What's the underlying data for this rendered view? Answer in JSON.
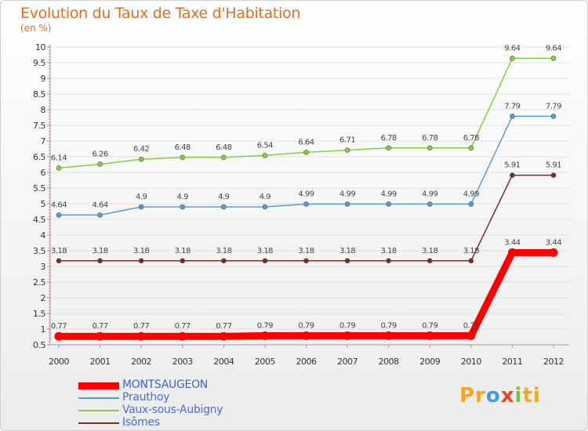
{
  "chart_data": {
    "type": "line",
    "title": "Evolution du Taux de Taxe d'Habitation",
    "subtitle": "(en %)",
    "x": [
      "2000",
      "2001",
      "2002",
      "2003",
      "2004",
      "2005",
      "2006",
      "2007",
      "2008",
      "2009",
      "2010",
      "2011",
      "2012"
    ],
    "ylim": [
      0.5,
      10
    ],
    "yticks": [
      "0.5",
      "1",
      "1.5",
      "2",
      "2.5",
      "3",
      "3.5",
      "4",
      "4.5",
      "5",
      "5.5",
      "6",
      "6.5",
      "7",
      "7.5",
      "8",
      "8.5",
      "9",
      "9.5",
      "10"
    ],
    "grid": "horizontal",
    "legend_position": "bottom-left",
    "series": [
      {
        "name": "MONTSAUGEON",
        "color": "#ff0000",
        "values": [
          0.77,
          0.77,
          0.77,
          0.77,
          0.77,
          0.79,
          0.79,
          0.79,
          0.79,
          0.79,
          0.79,
          3.44,
          3.44
        ],
        "labels": [
          "0.77",
          "0.77",
          "0.77",
          "0.77",
          "0.77",
          "0.79",
          "0.79",
          "0.79",
          "0.79",
          "0.79",
          "0.79",
          "3.44",
          "3.44"
        ]
      },
      {
        "name": "Prauthoy",
        "color": "#5b9bd5",
        "values": [
          4.64,
          4.64,
          4.9,
          4.9,
          4.9,
          4.9,
          4.99,
          4.99,
          4.99,
          4.99,
          4.99,
          7.79,
          7.79
        ],
        "labels": [
          "4.64",
          "4.64",
          "4.9",
          "4.9",
          "4.9",
          "4.9",
          "4.99",
          "4.99",
          "4.99",
          "4.99",
          "4.99",
          "7.79",
          "7.79"
        ]
      },
      {
        "name": "Vaux-sous-Aubigny",
        "color": "#88cc44",
        "values": [
          6.14,
          6.26,
          6.42,
          6.48,
          6.48,
          6.54,
          6.64,
          6.71,
          6.78,
          6.78,
          6.78,
          9.64,
          9.64
        ],
        "labels": [
          "6.14",
          "6.26",
          "6.42",
          "6.48",
          "6.48",
          "6.54",
          "6.64",
          "6.71",
          "6.78",
          "6.78",
          "6.78",
          "9.64",
          "9.64"
        ]
      },
      {
        "name": "Isômes",
        "color": "#7a2a2a",
        "values": [
          3.18,
          3.18,
          3.18,
          3.18,
          3.18,
          3.18,
          3.18,
          3.18,
          3.18,
          3.18,
          3.18,
          5.91,
          5.91
        ],
        "labels": [
          "3.18",
          "3.18",
          "3.18",
          "3.18",
          "3.18",
          "3.18",
          "3.18",
          "3.18",
          "3.18",
          "3.18",
          "3.18",
          "5.91",
          "5.91"
        ]
      }
    ]
  },
  "logo": {
    "parts": [
      "Pr",
      "o",
      "x",
      "i",
      "ti"
    ]
  }
}
